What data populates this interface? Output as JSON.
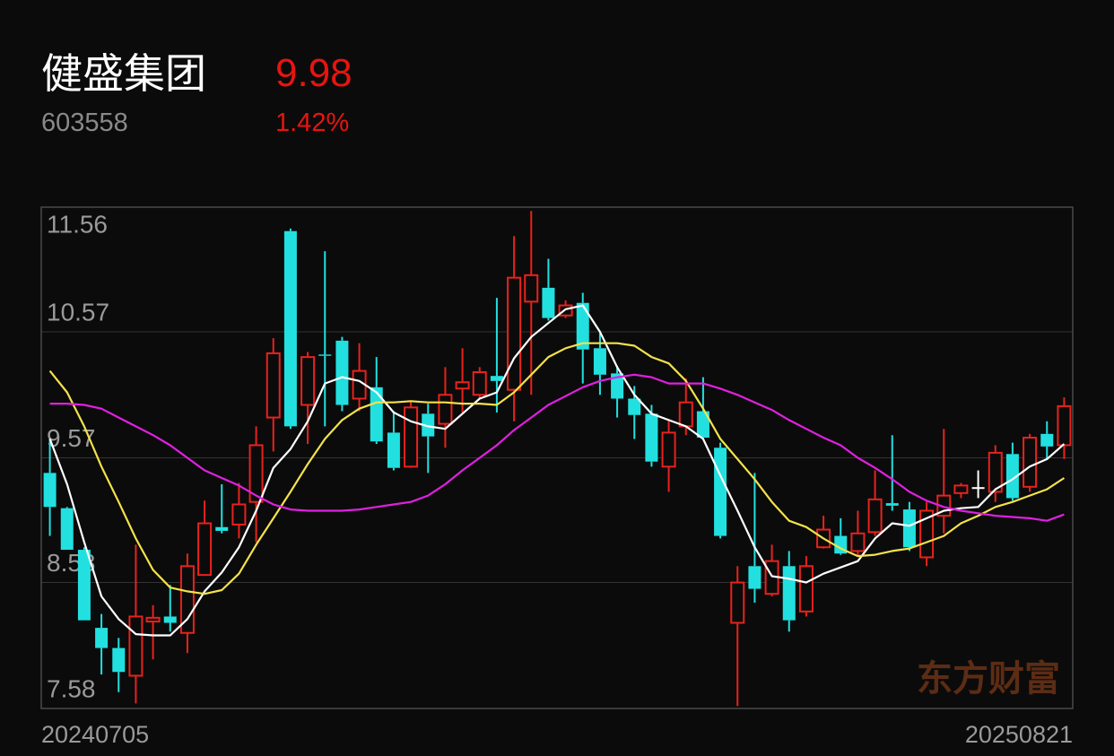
{
  "header": {
    "name": "健盛集团",
    "price": "9.98",
    "code": "603558",
    "change": "1.42%"
  },
  "watermark": "东方财富",
  "chart_data": {
    "type": "candlestick",
    "categories": [
      "20240705",
      null,
      null,
      null,
      null,
      null,
      null,
      null,
      null,
      null,
      null,
      null,
      null,
      null,
      null,
      null,
      null,
      null,
      null,
      null,
      null,
      null,
      null,
      null,
      null,
      null,
      null,
      null,
      null,
      null,
      null,
      null,
      null,
      null,
      null,
      null,
      null,
      null,
      null,
      null,
      null,
      null,
      null,
      null,
      null,
      null,
      null,
      null,
      null,
      null,
      null,
      null,
      null,
      null,
      null,
      null,
      null,
      null,
      null,
      "20250821"
    ],
    "open": [
      9.45,
      9.17,
      8.84,
      8.22,
      8.06,
      7.84,
      8.27,
      8.31,
      8.18,
      8.64,
      9.02,
      9.04,
      9.22,
      9.89,
      11.37,
      9.99,
      10.39,
      10.5,
      10.04,
      10.13,
      9.77,
      9.5,
      9.92,
      9.84,
      10.12,
      10.07,
      10.22,
      10.11,
      10.81,
      10.92,
      10.7,
      10.8,
      10.44,
      10.24,
      10.04,
      9.92,
      9.5,
      9.82,
      9.94,
      9.65,
      8.26,
      8.71,
      8.49,
      8.71,
      8.35,
      8.86,
      8.95,
      8.83,
      8.98,
      9.21,
      9.16,
      8.78,
      9.11,
      9.29,
      9.33,
      9.3,
      9.6,
      9.34,
      9.76,
      9.67
    ],
    "high": [
      9.72,
      9.18,
      8.86,
      8.33,
      8.14,
      8.88,
      8.4,
      8.56,
      8.81,
      9.23,
      9.36,
      9.37,
      9.82,
      10.52,
      11.39,
      10.41,
      11.21,
      10.53,
      10.48,
      10.37,
      9.94,
      10.02,
      10.0,
      10.29,
      10.44,
      10.29,
      10.84,
      11.33,
      11.53,
      11.15,
      10.82,
      10.88,
      10.56,
      10.3,
      10.14,
      9.99,
      9.87,
      10.2,
      10.21,
      9.69,
      8.71,
      9.45,
      8.88,
      8.83,
      8.79,
      9.11,
      9.09,
      9.15,
      9.47,
      9.75,
      9.22,
      9.22,
      9.8,
      9.37,
      9.47,
      9.67,
      9.69,
      9.76,
      9.86,
      10.05
    ],
    "low": [
      8.95,
      8.84,
      8.28,
      7.85,
      7.71,
      7.62,
      7.97,
      8.19,
      8.02,
      8.64,
      8.97,
      8.93,
      8.9,
      9.62,
      9.8,
      9.68,
      9.82,
      9.94,
      9.94,
      9.68,
      9.47,
      9.49,
      9.45,
      9.65,
      9.93,
      10.04,
      9.93,
      9.86,
      10.07,
      10.66,
      10.68,
      10.16,
      10.07,
      9.89,
      9.72,
      9.5,
      9.3,
      9.75,
      9.72,
      8.93,
      7.6,
      8.42,
      8.47,
      8.19,
      8.31,
      8.85,
      8.8,
      8.79,
      8.95,
      9.15,
      8.83,
      8.71,
      8.97,
      9.25,
      9.25,
      9.22,
      9.23,
      9.3,
      9.56,
      9.56
    ],
    "close": [
      9.18,
      8.84,
      8.28,
      8.06,
      7.87,
      8.31,
      8.3,
      8.26,
      8.71,
      9.05,
      8.99,
      9.2,
      9.67,
      10.4,
      9.82,
      10.37,
      10.38,
      9.99,
      10.26,
      9.7,
      9.49,
      9.97,
      9.74,
      10.07,
      10.17,
      10.25,
      10.18,
      11.0,
      11.02,
      10.68,
      10.78,
      10.43,
      10.23,
      10.04,
      9.91,
      9.54,
      9.77,
      10.01,
      9.73,
      8.95,
      8.58,
      8.53,
      8.75,
      8.28,
      8.71,
      9.0,
      8.81,
      8.97,
      9.24,
      9.19,
      8.86,
      9.15,
      9.27,
      9.35,
      9.33,
      9.61,
      9.25,
      9.73,
      9.66,
      9.98
    ],
    "up_color": "#e8221c",
    "down_color": "#22e0e0",
    "flat_color": "#ffffff",
    "lines": [
      {
        "color": "#ffffff",
        "values": [
          9.72,
          9.36,
          8.9,
          8.47,
          8.29,
          8.17,
          8.16,
          8.16,
          8.29,
          8.51,
          8.66,
          8.86,
          9.15,
          9.49,
          9.64,
          9.86,
          10.16,
          10.21,
          10.18,
          10.09,
          9.93,
          9.86,
          9.82,
          9.8,
          9.92,
          10.04,
          10.09,
          10.36,
          10.53,
          10.64,
          10.75,
          10.78,
          10.57,
          10.29,
          10.07,
          9.92,
          9.87,
          9.82,
          9.72,
          9.43,
          9.15,
          8.86,
          8.63,
          8.61,
          8.58,
          8.65,
          8.7,
          8.75,
          8.93,
          9.05,
          9.03,
          9.09,
          9.15,
          9.17,
          9.18,
          9.32,
          9.4,
          9.5,
          9.56,
          9.68
        ]
      },
      {
        "color": "#f3e24a",
        "values": [
          10.26,
          10.09,
          9.82,
          9.5,
          9.22,
          8.93,
          8.68,
          8.54,
          8.51,
          8.49,
          8.52,
          8.65,
          8.88,
          9.09,
          9.3,
          9.52,
          9.72,
          9.87,
          9.96,
          10.01,
          10.01,
          10.02,
          10.01,
          10.01,
          10.0,
          10.0,
          9.99,
          10.09,
          10.23,
          10.37,
          10.44,
          10.48,
          10.48,
          10.48,
          10.46,
          10.37,
          10.32,
          10.18,
          9.96,
          9.72,
          9.56,
          9.4,
          9.22,
          9.07,
          9.02,
          8.93,
          8.85,
          8.79,
          8.8,
          8.83,
          8.85,
          8.9,
          8.95,
          9.05,
          9.11,
          9.18,
          9.22,
          9.27,
          9.32,
          9.41
        ]
      },
      {
        "color": "#e020e0",
        "values": [
          10.0,
          10.0,
          9.99,
          9.96,
          9.89,
          9.82,
          9.75,
          9.67,
          9.57,
          9.47,
          9.41,
          9.35,
          9.27,
          9.2,
          9.16,
          9.15,
          9.15,
          9.15,
          9.16,
          9.18,
          9.2,
          9.22,
          9.27,
          9.36,
          9.47,
          9.57,
          9.67,
          9.79,
          9.89,
          9.99,
          10.06,
          10.13,
          10.18,
          10.21,
          10.23,
          10.21,
          10.16,
          10.16,
          10.16,
          10.12,
          10.07,
          10.01,
          9.95,
          9.87,
          9.8,
          9.73,
          9.67,
          9.57,
          9.49,
          9.4,
          9.3,
          9.23,
          9.18,
          9.15,
          9.13,
          9.11,
          9.1,
          9.09,
          9.07,
          9.12
        ]
      }
    ],
    "ylim": [
      7.58,
      11.56
    ],
    "yticks": [
      11.56,
      10.57,
      9.57,
      8.58,
      7.58
    ],
    "grid": true
  }
}
